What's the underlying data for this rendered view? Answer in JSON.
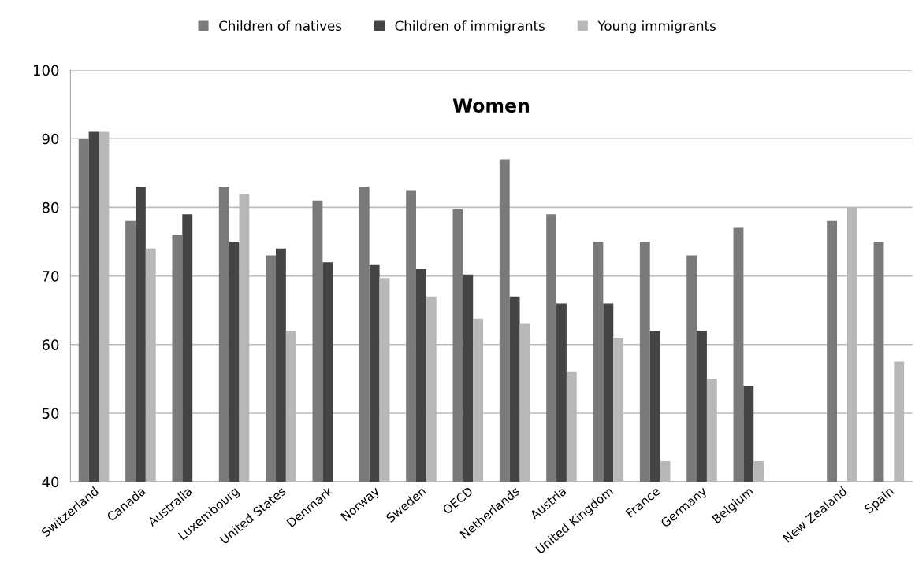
{
  "chart_data": {
    "type": "bar",
    "title": "Women",
    "categories": [
      "Switzerland",
      "Canada",
      "Australia",
      "Luxembourg",
      "United States",
      "Denmark",
      "Norway",
      "Sweden",
      "OECD",
      "Netherlands",
      "Austria",
      "United Kingdom",
      "France",
      "Germany",
      "Belgium",
      null,
      "New Zealand",
      "Spain"
    ],
    "series": [
      {
        "name": "Children of natives",
        "color": "#7a7a7a",
        "values": [
          90,
          78,
          76,
          83,
          73,
          81,
          83,
          82.4,
          79.7,
          87,
          79,
          75,
          75,
          73,
          77,
          null,
          78,
          75
        ]
      },
      {
        "name": "Children of immigrants",
        "color": "#444444",
        "values": [
          91,
          83,
          79,
          75,
          74,
          72,
          71.6,
          71,
          70.2,
          67,
          66,
          66,
          62,
          62,
          54,
          null,
          null,
          null
        ]
      },
      {
        "name": "Young immigrants",
        "color": "#b8b8b8",
        "values": [
          91,
          74,
          null,
          82,
          62,
          null,
          69.7,
          67,
          63.8,
          63,
          56,
          61,
          43,
          55,
          43,
          null,
          80,
          57.5
        ]
      }
    ],
    "ylim": [
      40,
      100
    ],
    "yticks": [
      40,
      50,
      60,
      70,
      80,
      90,
      100
    ],
    "grid": "y",
    "legend": "top"
  }
}
